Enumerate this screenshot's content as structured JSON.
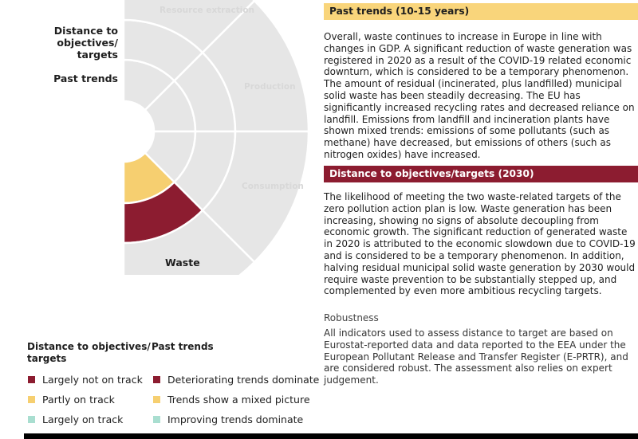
{
  "wheel": {
    "segment_labels": {
      "resource_extraction": "Resource extraction",
      "production": "Production",
      "consumption": "Consumption",
      "waste": "Waste"
    },
    "ring_labels": {
      "distance": "Distance to objectives/\ntargets",
      "past_trends": "Past trends"
    },
    "status": {
      "waste_distance": "largely-not-on-track",
      "waste_past_trends": "partly-on-track"
    }
  },
  "colors": {
    "inactive": "#e6e6e6",
    "largely_not_on_track": "#8c1c30",
    "partly_on_track": "#f6cf70",
    "largely_on_track": "#a9ded0",
    "band_past": "#f9d57b",
    "band_distance": "#8c1c30"
  },
  "legend": {
    "distance_title": "Distance to objectives/\ntargets",
    "past_title": "Past trends",
    "distance_items": [
      "Largely not on track",
      "Partly on track",
      "Largely on track"
    ],
    "past_items": [
      "Deteriorating trends dominate",
      "Trends show a mixed picture",
      "Improving trends dominate"
    ]
  },
  "sections": {
    "past_title": "Past trends (10-15 years)",
    "past_text": "Overall, waste continues to increase in Europe in line with changes in GDP. A significant reduction of waste generation was registered in 2020 as a result of the COVID-19 related economic downturn, which is considered to be a temporary phenomenon. The amount of residual (incinerated, plus landfilled) municipal solid waste has been steadily decreasing. The EU has significantly increased recycling rates and decreased reliance on landfill. Emissions from landfill and incineration plants have shown mixed trends: emissions of some pollutants (such as methane) have decreased, but emissions of others (such as nitrogen oxides) have increased.",
    "distance_title": "Distance to objectives/targets (2030)",
    "distance_text": "The likelihood of meeting the two waste-related targets of the zero pollution action plan is low. Waste generation has been increasing, showing no signs of absolute decoupling from economic growth. The significant reduction of generated waste in 2020 is attributed to the economic slowdown due to COVID-19 and is considered to be a temporary phenomenon. In addition, halving residual municipal solid waste generation by 2030 would require waste prevention to be substantially stepped up, and complemented by even more ambitious recycling targets.",
    "robustness_title": "Robustness",
    "robustness_text": "All indicators used to assess distance to target are based on Eurostat-reported data and data reported to the EEA under the European Pollutant Release and Transfer Register (E-PRTR), and are considered robust. The assessment also relies on expert judgement."
  }
}
